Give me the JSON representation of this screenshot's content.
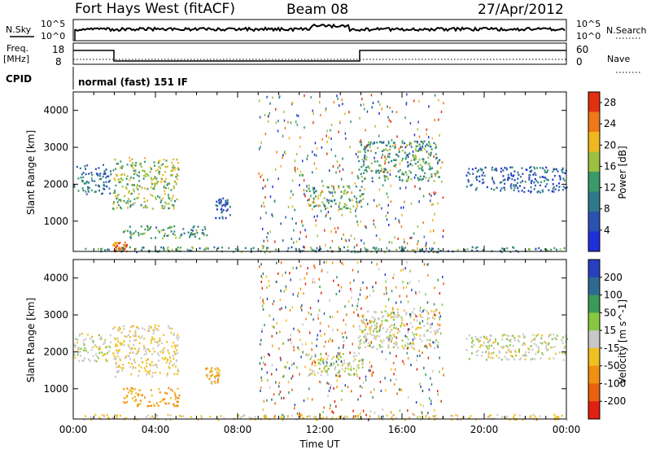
{
  "header": {
    "radar": "Fort Hays West (fitACF)",
    "beam": "Beam 08",
    "date": "27/Apr/2012"
  },
  "params": {
    "nsky_label": "N.Sky",
    "nsky_hi": "10^5",
    "nsky_lo": "10^0",
    "nsearch_label": "N.Search",
    "nsearch_hi": "10^5",
    "nsearch_lo": "10^0",
    "freq_label_1": "Freq.",
    "freq_label_2": "[MHz]",
    "freq_hi": "18",
    "freq_lo": "8",
    "nave_label": "Nave",
    "nave_hi": "60",
    "nave_lo": "0",
    "cpid_label": "CPID",
    "cpid_text": "normal (fast) 151 IF"
  },
  "colors": {
    "power": [
      "#2030d8",
      "#2a52b0",
      "#2e7a8a",
      "#3a9a6a",
      "#9cc040",
      "#f0b820",
      "#f07818",
      "#e03010"
    ],
    "velocity": [
      "#2840c0",
      "#2e6a90",
      "#3a9a58",
      "#88c840",
      "#c8c8c8",
      "#f0c020",
      "#f09010",
      "#e86010",
      "#e02010"
    ]
  },
  "chart_data": [
    {
      "type": "heatmap",
      "title": "",
      "xlabel": "",
      "ylabel": "Slant Range [km]",
      "xlim": [
        0,
        24
      ],
      "ylim": [
        180,
        4500
      ],
      "xticks": [
        "00:00",
        "04:00",
        "08:00",
        "12:00",
        "16:00",
        "20:00",
        "00:00"
      ],
      "yticks": [
        "1000",
        "2000",
        "3000",
        "4000"
      ],
      "grid": false,
      "colorbar": {
        "label": "Power [dB]",
        "ticks": [
          "4",
          "8",
          "12",
          "16",
          "20",
          "24",
          "28"
        ],
        "range": [
          0,
          30
        ]
      },
      "echo_regions": [
        {
          "t": [
            0.0,
            1.8
          ],
          "r": [
            1750,
            2550
          ],
          "level": 0.25
        },
        {
          "t": [
            1.9,
            5.1
          ],
          "r": [
            1350,
            2750
          ],
          "level": 0.55
        },
        {
          "t": [
            2.4,
            6.6
          ],
          "r": [
            550,
            900
          ],
          "level": 0.4
        },
        {
          "t": [
            1.9,
            2.6
          ],
          "r": [
            200,
            450
          ],
          "level": 0.9
        },
        {
          "t": [
            6.9,
            7.6
          ],
          "r": [
            1100,
            1650
          ],
          "level": 0.15
        },
        {
          "t": [
            11.3,
            14.1
          ],
          "r": [
            1350,
            2000
          ],
          "level": 0.5
        },
        {
          "t": [
            13.8,
            17.8
          ],
          "r": [
            2100,
            3200
          ],
          "level": 0.4
        },
        {
          "t": [
            19.1,
            24.0
          ],
          "r": [
            1800,
            2500
          ],
          "level": 0.2
        },
        {
          "t": [
            0.5,
            24.0
          ],
          "r": [
            180,
            320
          ],
          "level": 0.35
        }
      ]
    },
    {
      "type": "heatmap",
      "title": "",
      "xlabel": "Time UT",
      "ylabel": "Slant Range [km]",
      "xlim": [
        0,
        24
      ],
      "ylim": [
        180,
        4500
      ],
      "xticks": [
        "00:00",
        "04:00",
        "08:00",
        "12:00",
        "16:00",
        "20:00",
        "00:00"
      ],
      "yticks": [
        "1000",
        "2000",
        "3000",
        "4000"
      ],
      "grid": false,
      "colorbar": {
        "label": "Velocity [m s^-1]",
        "ticks": [
          "200",
          "100",
          "50",
          "15",
          "-15",
          "-50",
          "-100",
          "-200"
        ],
        "range": [
          -250,
          250
        ]
      },
      "echo_regions": [
        {
          "t": [
            0.0,
            1.8
          ],
          "r": [
            1750,
            2550
          ],
          "velocity": 0
        },
        {
          "t": [
            1.9,
            5.1
          ],
          "r": [
            1350,
            2750
          ],
          "velocity": -20
        },
        {
          "t": [
            2.4,
            5.2
          ],
          "r": [
            550,
            1050
          ],
          "velocity": -60
        },
        {
          "t": [
            6.4,
            7.1
          ],
          "r": [
            1150,
            1600
          ],
          "velocity": -40
        },
        {
          "t": [
            11.3,
            14.1
          ],
          "r": [
            1350,
            2000
          ],
          "velocity": 0
        },
        {
          "t": [
            13.8,
            17.8
          ],
          "r": [
            2100,
            3200
          ],
          "velocity": 0
        },
        {
          "t": [
            19.1,
            24.0
          ],
          "r": [
            1800,
            2500
          ],
          "velocity": 0
        },
        {
          "t": [
            0.5,
            24.0
          ],
          "r": [
            180,
            320
          ],
          "velocity": -25
        }
      ]
    }
  ]
}
